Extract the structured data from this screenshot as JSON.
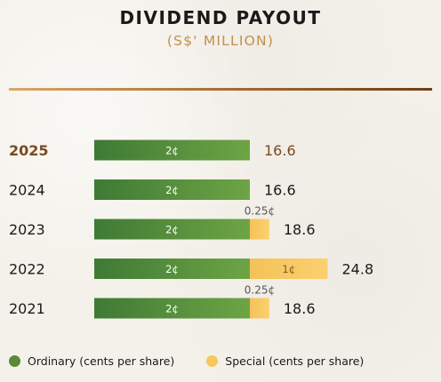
{
  "header": {
    "title": "DIVIDEND PAYOUT",
    "subtitle": "(S$' MILLION)"
  },
  "colors": {
    "ordinary": "#5a8a3c",
    "special": "#f7c75c",
    "current_year": "#7a4a1f"
  },
  "chart_data": {
    "type": "bar",
    "orientation": "horizontal",
    "stacked": true,
    "categories": [
      "2025",
      "2024",
      "2023",
      "2022",
      "2021"
    ],
    "highlight_category": "2025",
    "series": [
      {
        "name": "Ordinary (cents per share)",
        "segment_labels": [
          "2¢",
          "2¢",
          "2¢",
          "2¢",
          "2¢"
        ]
      },
      {
        "name": "Special (cents per share)",
        "segment_labels": [
          "",
          "",
          "",
          "1¢",
          ""
        ]
      }
    ],
    "ordinary_cents": [
      2,
      2,
      2,
      2,
      2
    ],
    "special_cents": [
      0,
      0,
      0.25,
      1,
      0.25
    ],
    "annotations": [
      "",
      "",
      "0.25¢",
      "",
      "0.25¢"
    ],
    "totals": [
      16.6,
      16.6,
      18.6,
      24.8,
      18.6
    ],
    "total_labels": [
      "16.6",
      "16.6",
      "18.6",
      "24.8",
      "18.6"
    ],
    "legend_position": "bottom",
    "grid": false
  }
}
